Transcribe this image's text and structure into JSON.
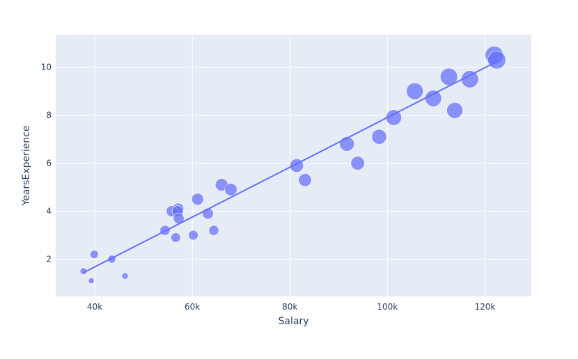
{
  "chart_data": {
    "type": "scatter",
    "xlabel": "Salary",
    "ylabel": "YearsExperience",
    "xlim": [
      32000,
      129500
    ],
    "ylim": [
      0.45,
      11.35
    ],
    "x_ticks": [
      40000,
      60000,
      80000,
      100000,
      120000
    ],
    "x_tick_labels": [
      "40k",
      "60k",
      "80k",
      "100k",
      "120k"
    ],
    "y_ticks": [
      2,
      4,
      6,
      8,
      10
    ],
    "y_tick_labels": [
      "2",
      "4",
      "6",
      "8",
      "10"
    ],
    "grid": true,
    "marker_size_encodes": "YearsExperience",
    "points": [
      {
        "x": 39300,
        "y": 1.1
      },
      {
        "x": 46200,
        "y": 1.3
      },
      {
        "x": 37700,
        "y": 1.5
      },
      {
        "x": 43500,
        "y": 2.0
      },
      {
        "x": 39900,
        "y": 2.2
      },
      {
        "x": 56600,
        "y": 2.9
      },
      {
        "x": 60200,
        "y": 3.0
      },
      {
        "x": 54400,
        "y": 3.2
      },
      {
        "x": 64400,
        "y": 3.2
      },
      {
        "x": 57200,
        "y": 3.7
      },
      {
        "x": 63200,
        "y": 3.9
      },
      {
        "x": 55800,
        "y": 4.0
      },
      {
        "x": 57000,
        "y": 4.0
      },
      {
        "x": 57100,
        "y": 4.1
      },
      {
        "x": 61100,
        "y": 4.5
      },
      {
        "x": 67900,
        "y": 4.9
      },
      {
        "x": 66000,
        "y": 5.1
      },
      {
        "x": 83100,
        "y": 5.3
      },
      {
        "x": 81400,
        "y": 5.9
      },
      {
        "x": 93900,
        "y": 6.0
      },
      {
        "x": 91700,
        "y": 6.8
      },
      {
        "x": 98300,
        "y": 7.1
      },
      {
        "x": 101300,
        "y": 7.9
      },
      {
        "x": 113800,
        "y": 8.2
      },
      {
        "x": 109400,
        "y": 8.7
      },
      {
        "x": 105600,
        "y": 9.0
      },
      {
        "x": 116900,
        "y": 9.5
      },
      {
        "x": 112600,
        "y": 9.6
      },
      {
        "x": 122400,
        "y": 10.3
      },
      {
        "x": 121900,
        "y": 10.5
      }
    ],
    "trendline": {
      "type": "ols",
      "x": [
        37700,
        122400
      ],
      "y": [
        1.44,
        10.23
      ]
    },
    "colors": {
      "marker": "#636efa",
      "line": "#636efa",
      "plot_bg": "#e5ecf6",
      "grid": "#ffffff",
      "text": "#2a3f5f"
    }
  }
}
